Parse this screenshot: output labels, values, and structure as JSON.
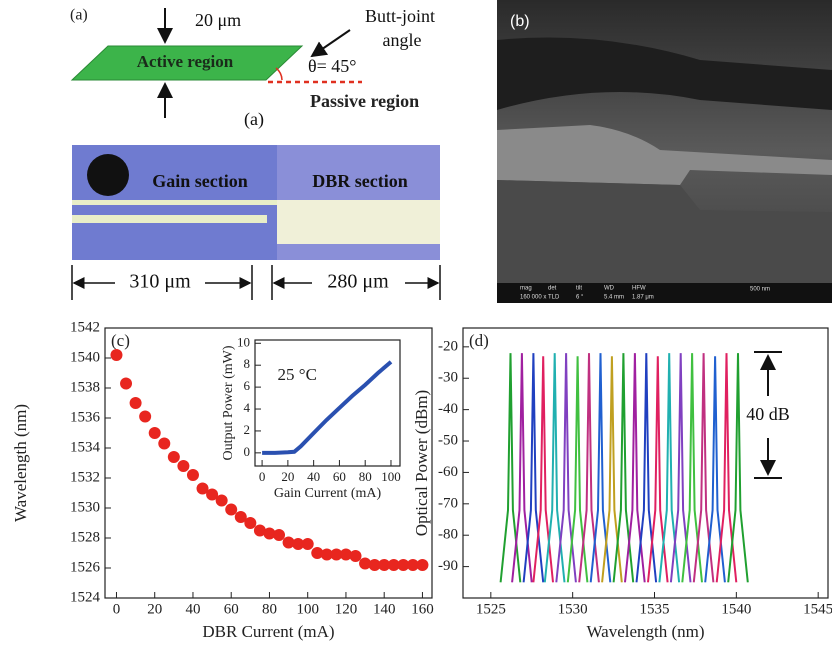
{
  "panel_a": {
    "label": "(a)",
    "width_label": "20 μm",
    "active_label": "Active region",
    "butt_joint": "Butt-joint",
    "angle_word": "angle",
    "theta": "θ= 45°",
    "passive_label": "Passive region",
    "sub_label": "(a)",
    "gain_label": "Gain section",
    "dbr_label": "DBR section",
    "gain_length": "310 μm",
    "dbr_length": "280 μm"
  },
  "panel_b": {
    "label": "(b)",
    "sem_fields": [
      "mag",
      "det",
      "tilt",
      "WD",
      "HFW"
    ],
    "sem_values": [
      "160 000 x",
      "TLD",
      "6 °",
      "5.4 mm",
      "1.87 μm"
    ],
    "scale": "500 nm"
  },
  "chart_data": [
    {
      "type": "scatter",
      "panel_label": "(c)",
      "x_label": "DBR Current (mA)",
      "y_label": "Wavelength (nm)",
      "x": [
        0,
        5,
        10,
        15,
        20,
        25,
        30,
        35,
        40,
        45,
        50,
        55,
        60,
        65,
        70,
        75,
        80,
        85,
        90,
        95,
        100,
        105,
        110,
        115,
        120,
        125,
        130,
        135,
        140,
        145,
        150,
        155,
        160
      ],
      "series": [
        {
          "color": "#e8261f",
          "values": [
            1540.2,
            1538.3,
            1537.0,
            1536.1,
            1535.0,
            1534.3,
            1533.4,
            1532.8,
            1532.2,
            1531.3,
            1530.9,
            1530.5,
            1529.9,
            1529.4,
            1529.0,
            1528.5,
            1528.3,
            1528.2,
            1527.7,
            1527.6,
            1527.6,
            1527.0,
            1526.9,
            1526.9,
            1526.9,
            1526.8,
            1526.3,
            1526.2,
            1526.2,
            1526.2,
            1526.2,
            1526.2,
            1526.2
          ]
        }
      ],
      "xlim": [
        -6,
        165
      ],
      "xticks": [
        0,
        20,
        40,
        60,
        80,
        100,
        120,
        140,
        160
      ],
      "ylim": [
        1524,
        1542
      ],
      "yticks": [
        1524,
        1526,
        1528,
        1530,
        1532,
        1534,
        1536,
        1538,
        1540,
        1542
      ]
    },
    {
      "type": "line",
      "annotation": "25 °C",
      "x_label": "Gain Current (mA)",
      "y_label": "Output Power (mW)",
      "x": [
        0,
        10,
        20,
        25,
        30,
        40,
        50,
        60,
        70,
        80,
        90,
        100
      ],
      "series": [
        {
          "color": "#2a50b0",
          "values": [
            0,
            0,
            0.05,
            0.1,
            0.6,
            1.8,
            3.0,
            4.1,
            5.2,
            6.2,
            7.3,
            8.3
          ]
        }
      ],
      "xlim": [
        -5.5,
        107
      ],
      "xticks": [
        0,
        20,
        40,
        60,
        80,
        100
      ],
      "ylim": [
        -1.2,
        10.3
      ],
      "yticks": [
        0,
        2,
        4,
        6,
        8,
        10
      ]
    },
    {
      "type": "line",
      "panel_label": "(d)",
      "annotation": "40 dB",
      "x_label": "Wavelength (nm)",
      "y_label": "Optical Power (dBm)",
      "series": [
        {
          "color": "#20a030",
          "x": [
            1525.6,
            1526.05,
            1526.2,
            1526.35,
            1526.8
          ],
          "values": [
            -95,
            -72,
            -22,
            -72,
            -95
          ]
        },
        {
          "color": "#a020a0",
          "x": [
            1526.3,
            1526.75,
            1526.9,
            1527.05,
            1527.5
          ],
          "values": [
            -95,
            -72,
            -22,
            -72,
            -95
          ]
        },
        {
          "color": "#2040c0",
          "x": [
            1527.0,
            1527.45,
            1527.6,
            1527.75,
            1528.2
          ],
          "values": [
            -95,
            -72,
            -22,
            -72,
            -95
          ]
        },
        {
          "color": "#e02060",
          "x": [
            1527.6,
            1528.05,
            1528.2,
            1528.35,
            1528.8
          ],
          "values": [
            -95,
            -72,
            -23,
            -72,
            -95
          ]
        },
        {
          "color": "#20b0b0",
          "x": [
            1528.3,
            1528.75,
            1528.9,
            1529.05,
            1529.5
          ],
          "values": [
            -95,
            -72,
            -22,
            -72,
            -95
          ]
        },
        {
          "color": "#8040c0",
          "x": [
            1529.0,
            1529.45,
            1529.6,
            1529.75,
            1530.2
          ],
          "values": [
            -95,
            -72,
            -22,
            -72,
            -95
          ]
        },
        {
          "color": "#40c040",
          "x": [
            1529.7,
            1530.15,
            1530.3,
            1530.45,
            1530.9
          ],
          "values": [
            -95,
            -72,
            -23,
            -72,
            -95
          ]
        },
        {
          "color": "#c03080",
          "x": [
            1530.4,
            1530.85,
            1531.0,
            1531.15,
            1531.6
          ],
          "values": [
            -95,
            -72,
            -22,
            -72,
            -95
          ]
        },
        {
          "color": "#2060d0",
          "x": [
            1531.1,
            1531.55,
            1531.7,
            1531.85,
            1532.3
          ],
          "values": [
            -95,
            -72,
            -22,
            -72,
            -95
          ]
        },
        {
          "color": "#c0a020",
          "x": [
            1531.8,
            1532.25,
            1532.4,
            1532.55,
            1533.0
          ],
          "values": [
            -95,
            -72,
            -23,
            -72,
            -95
          ]
        },
        {
          "color": "#20a030",
          "x": [
            1532.5,
            1532.95,
            1533.1,
            1533.25,
            1533.7
          ],
          "values": [
            -95,
            -72,
            -22,
            -72,
            -95
          ]
        },
        {
          "color": "#a020a0",
          "x": [
            1533.2,
            1533.65,
            1533.8,
            1533.95,
            1534.4
          ],
          "values": [
            -95,
            -72,
            -22,
            -72,
            -95
          ]
        },
        {
          "color": "#2040c0",
          "x": [
            1533.9,
            1534.35,
            1534.5,
            1534.65,
            1535.1
          ],
          "values": [
            -95,
            -72,
            -22,
            -72,
            -95
          ]
        },
        {
          "color": "#e02060",
          "x": [
            1534.6,
            1535.05,
            1535.2,
            1535.35,
            1535.8
          ],
          "values": [
            -95,
            -72,
            -23,
            -72,
            -95
          ]
        },
        {
          "color": "#20b0b0",
          "x": [
            1535.3,
            1535.75,
            1535.9,
            1536.05,
            1536.5
          ],
          "values": [
            -95,
            -72,
            -22,
            -72,
            -95
          ]
        },
        {
          "color": "#8040c0",
          "x": [
            1536.0,
            1536.45,
            1536.6,
            1536.75,
            1537.2
          ],
          "values": [
            -95,
            -72,
            -22,
            -72,
            -95
          ]
        },
        {
          "color": "#40c040",
          "x": [
            1536.7,
            1537.15,
            1537.3,
            1537.45,
            1537.9
          ],
          "values": [
            -95,
            -72,
            -22,
            -72,
            -95
          ]
        },
        {
          "color": "#c03080",
          "x": [
            1537.4,
            1537.85,
            1538.0,
            1538.15,
            1538.6
          ],
          "values": [
            -95,
            -72,
            -22,
            -72,
            -95
          ]
        },
        {
          "color": "#2060d0",
          "x": [
            1538.1,
            1538.55,
            1538.7,
            1538.85,
            1539.3
          ],
          "values": [
            -95,
            -72,
            -23,
            -72,
            -95
          ]
        },
        {
          "color": "#e02060",
          "x": [
            1538.8,
            1539.25,
            1539.4,
            1539.55,
            1540.0
          ],
          "values": [
            -95,
            -72,
            -22,
            -72,
            -95
          ]
        },
        {
          "color": "#20a030",
          "x": [
            1539.5,
            1539.95,
            1540.1,
            1540.25,
            1540.7
          ],
          "values": [
            -95,
            -72,
            -22,
            -72,
            -95
          ]
        }
      ],
      "xlim": [
        1523.3,
        1545.6
      ],
      "xticks": [
        1525,
        1530,
        1535,
        1540,
        1545
      ],
      "ylim": [
        -100,
        -14
      ],
      "yticks": [
        -90,
        -80,
        -70,
        -60,
        -50,
        -40,
        -30,
        -20
      ]
    }
  ]
}
